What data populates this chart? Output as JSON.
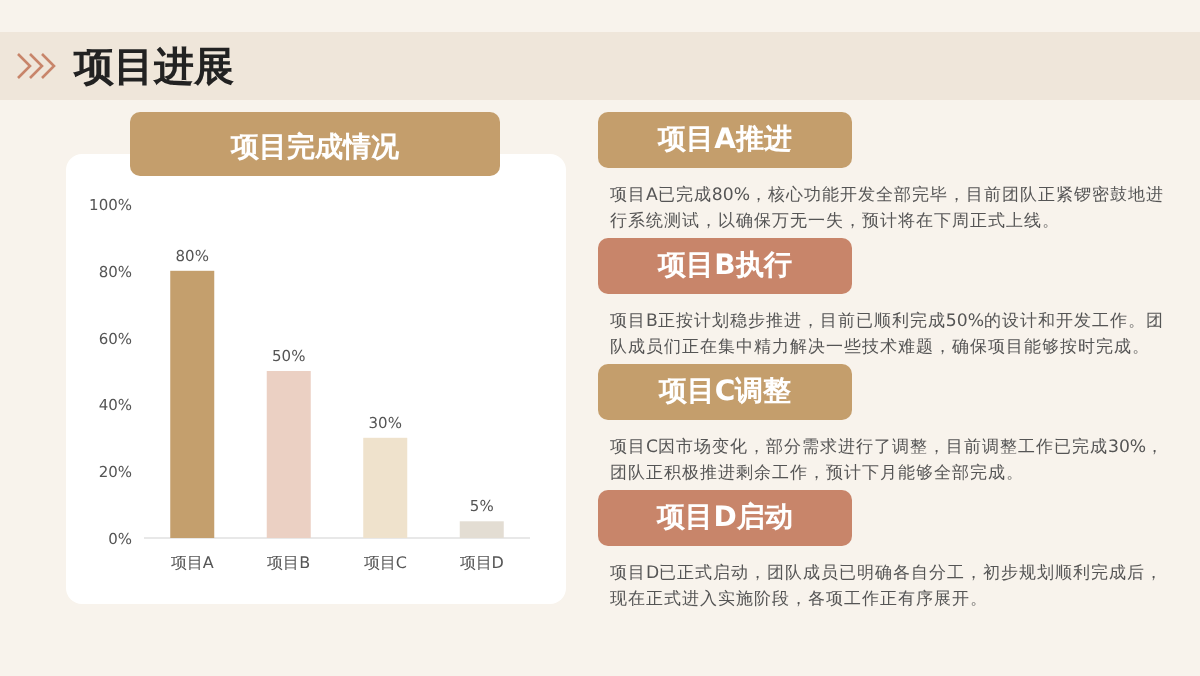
{
  "chart_data": [
    {
      "type": "other",
      "title": "项目进展"
    },
    {
      "type": "bar",
      "title": "项目完成情况",
      "categories": [
        "项目A",
        "项目B",
        "项目C",
        "项目D"
      ],
      "values": [
        80,
        50,
        30,
        5
      ],
      "colors": [
        "#c49f6d",
        "#ebd0c3",
        "#efe2cc",
        "#e3ddd3"
      ],
      "value_labels": [
        "80%",
        "50%",
        "30%",
        "5%"
      ],
      "ylim": [
        0,
        100
      ],
      "yticks": [
        {
          "value": 0,
          "label": "0%"
        },
        {
          "value": 20,
          "label": "20%"
        },
        {
          "value": 40,
          "label": "40%"
        },
        {
          "value": 60,
          "label": "60%"
        },
        {
          "value": 80,
          "label": "80%"
        },
        {
          "value": 100,
          "label": "100%"
        }
      ]
    },
    {
      "type": "other",
      "annotations": [
        "项目A推进",
        "项目A已完成80%，核心功能开发全部完毕，目前团队正紧锣密鼓地进行系统测试，以确保万无一失，预计将在下周正式上线。",
        "项目B执行",
        "项目B正按计划稳步推进，目前已顺利完成50%的设计和开发工作。团队成员们正在集中精力解决一些技术难题，确保项目能够按时完成。",
        "项目C调整",
        "项目C因市场变化，部分需求进行了调整，目前调整工作已完成30%，团队正积极推进剩余工作，预计下月能够全部完成。",
        "项目D启动",
        "项目D已正式启动，团队成员已明确各自分工，初步规划顺利完成后，现在正式进入实施阶段，各项工作正有序展开。"
      ]
    }
  ]
}
